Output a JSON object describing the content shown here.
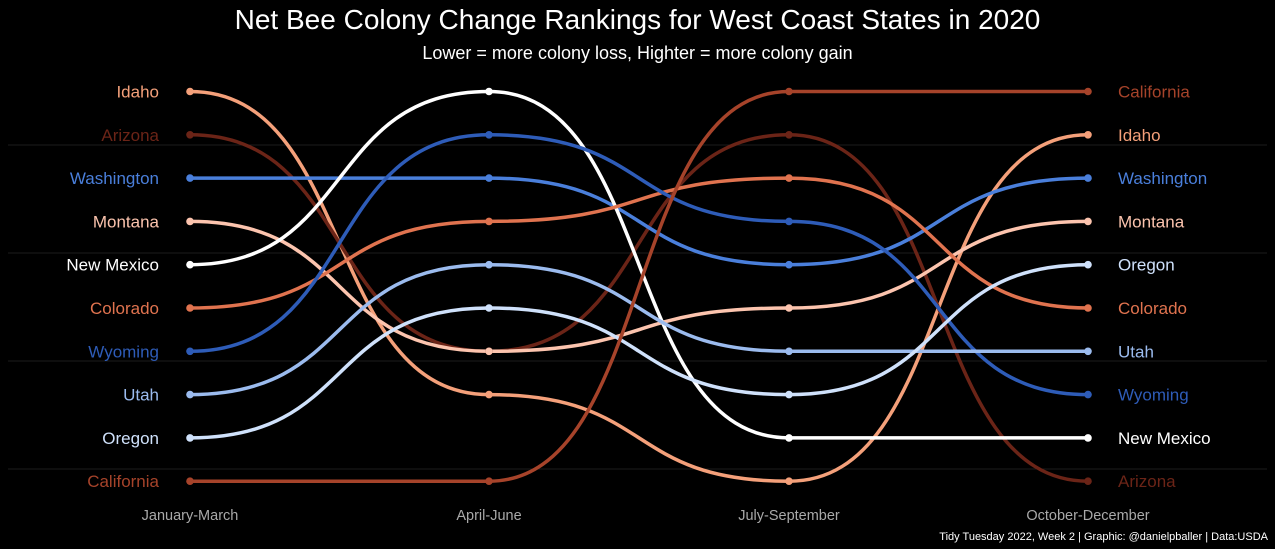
{
  "title": "Net Bee Colony Change Rankings for West Coast States in 2020",
  "subtitle": "Lower = more colony loss, Highter = more colony gain",
  "caption": "Tidy Tuesday 2022, Week 2 | Graphic: @danielpballer | Data:USDA",
  "chart_data": {
    "type": "line",
    "subtype": "bump",
    "x": [
      "January-March",
      "April-June",
      "July-September",
      "October-December"
    ],
    "ylim": [
      1,
      10
    ],
    "y_reversed": true,
    "grid": "faint horizontal",
    "legend": "none (labels at both ends)",
    "series": [
      {
        "name": "Idaho",
        "color": "#F4A07A",
        "values": [
          1,
          8,
          10,
          2
        ]
      },
      {
        "name": "Arizona",
        "color": "#6B2417",
        "values": [
          2,
          7,
          2,
          10
        ]
      },
      {
        "name": "Washington",
        "color": "#4A7FDB",
        "values": [
          3,
          3,
          5,
          3
        ]
      },
      {
        "name": "Montana",
        "color": "#FCC4AE",
        "values": [
          4,
          7,
          6,
          4
        ]
      },
      {
        "name": "New Mexico",
        "color": "#FFFFFF",
        "values": [
          5,
          1,
          9,
          9
        ]
      },
      {
        "name": "Colorado",
        "color": "#E0734F",
        "values": [
          6,
          4,
          3,
          6
        ]
      },
      {
        "name": "Wyoming",
        "color": "#2E5CB8",
        "values": [
          7,
          2,
          4,
          8
        ]
      },
      {
        "name": "Utah",
        "color": "#9BBBEE",
        "values": [
          8,
          5,
          7,
          7
        ]
      },
      {
        "name": "Oregon",
        "color": "#CFE1FB",
        "values": [
          9,
          6,
          8,
          5
        ]
      },
      {
        "name": "California",
        "color": "#A6432A",
        "values": [
          10,
          10,
          1,
          1
        ]
      }
    ]
  }
}
